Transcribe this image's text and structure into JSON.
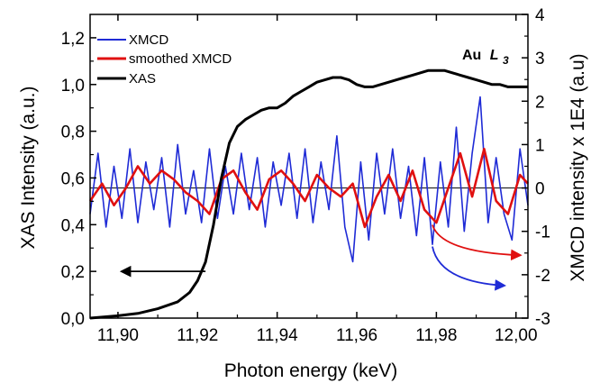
{
  "chart_data": {
    "type": "line",
    "title": "",
    "xlabel": "Photon energy (keV)",
    "ylabel": "XAS Intensity (a.u.)",
    "y2label": "XMCD intensity x 1E4 (a.u)",
    "xlim": [
      11.893,
      12.003
    ],
    "ylim": [
      0.0,
      1.3
    ],
    "y2lim": [
      -3,
      4
    ],
    "x_ticks": [
      11.9,
      11.92,
      11.94,
      11.96,
      11.98,
      12.0
    ],
    "x_tick_labels": [
      "11,90",
      "11,92",
      "11,94",
      "11,96",
      "11,98",
      "12,00"
    ],
    "y_ticks": [
      0.0,
      0.2,
      0.4,
      0.6,
      0.8,
      1.0,
      1.2
    ],
    "y_tick_labels": [
      "0,0",
      "0,2",
      "0,4",
      "0,6",
      "0,8",
      "1,0",
      "1,2"
    ],
    "y2_ticks": [
      -3,
      -2,
      -1,
      0,
      1,
      2,
      3,
      4
    ],
    "y2_tick_labels": [
      "-3",
      "-2",
      "-1",
      "0",
      "1",
      "2",
      "3",
      "4"
    ],
    "grid": false,
    "legend_position": "top-left",
    "zero_line_y2": 0,
    "annotation": {
      "text": "Au",
      "element_subscript_label": "L",
      "subscript": "3"
    },
    "colors": {
      "xmcd": "#1f2bd6",
      "smoothed": "#e01010",
      "xas": "#000000"
    },
    "series": [
      {
        "name": "XMCD",
        "axis": "right",
        "x": [
          11.893,
          11.895,
          11.897,
          11.899,
          11.901,
          11.903,
          11.905,
          11.907,
          11.909,
          11.911,
          11.913,
          11.915,
          11.917,
          11.919,
          11.921,
          11.923,
          11.925,
          11.927,
          11.929,
          11.931,
          11.933,
          11.935,
          11.937,
          11.939,
          11.941,
          11.943,
          11.945,
          11.947,
          11.949,
          11.951,
          11.953,
          11.955,
          11.957,
          11.959,
          11.961,
          11.963,
          11.965,
          11.967,
          11.969,
          11.971,
          11.973,
          11.975,
          11.977,
          11.979,
          11.981,
          11.983,
          11.985,
          11.987,
          11.989,
          11.991,
          11.993,
          11.995,
          11.997,
          11.999,
          12.001,
          12.003
        ],
        "values": [
          -0.6,
          0.8,
          -0.9,
          0.5,
          -0.7,
          0.9,
          -0.8,
          0.6,
          -0.5,
          0.7,
          -0.9,
          1.0,
          -0.6,
          0.4,
          -0.8,
          0.9,
          -0.7,
          0.5,
          -0.6,
          0.8,
          -0.5,
          0.7,
          -0.9,
          0.6,
          -0.4,
          0.8,
          -0.7,
          0.9,
          -0.8,
          0.6,
          -0.5,
          1.2,
          -0.9,
          -1.7,
          0.6,
          -1.2,
          0.8,
          -0.6,
          0.9,
          -0.7,
          0.5,
          -1.1,
          0.7,
          -1.3,
          0.6,
          -0.9,
          1.4,
          -1.0,
          0.8,
          2.1,
          -0.8,
          0.7,
          -0.6,
          -1.2,
          0.9,
          -0.4
        ]
      },
      {
        "name": "smoothed XMCD",
        "axis": "right",
        "x": [
          11.893,
          11.896,
          11.899,
          11.902,
          11.905,
          11.908,
          11.911,
          11.914,
          11.917,
          11.92,
          11.923,
          11.926,
          11.929,
          11.932,
          11.935,
          11.938,
          11.941,
          11.944,
          11.947,
          11.95,
          11.953,
          11.956,
          11.959,
          11.962,
          11.965,
          11.968,
          11.971,
          11.974,
          11.977,
          11.98,
          11.983,
          11.986,
          11.989,
          11.992,
          11.995,
          11.998,
          12.001,
          12.003
        ],
        "values": [
          -0.3,
          0.1,
          -0.4,
          0.0,
          0.5,
          0.1,
          0.4,
          0.2,
          -0.1,
          -0.3,
          -0.6,
          0.2,
          0.4,
          -0.1,
          -0.5,
          0.2,
          0.4,
          0.1,
          -0.3,
          0.3,
          0.0,
          -0.2,
          0.1,
          -0.9,
          -0.2,
          0.3,
          -0.3,
          0.4,
          -0.5,
          -0.8,
          0.0,
          0.8,
          -0.2,
          0.9,
          -0.3,
          -0.6,
          0.3,
          0.1
        ]
      },
      {
        "name": "XAS",
        "axis": "left",
        "x": [
          11.893,
          11.9,
          11.905,
          11.91,
          11.915,
          11.918,
          11.92,
          11.922,
          11.924,
          11.926,
          11.928,
          11.93,
          11.932,
          11.934,
          11.936,
          11.938,
          11.94,
          11.942,
          11.944,
          11.946,
          11.948,
          11.95,
          11.952,
          11.954,
          11.956,
          11.958,
          11.96,
          11.962,
          11.964,
          11.966,
          11.968,
          11.97,
          11.972,
          11.974,
          11.976,
          11.978,
          11.98,
          11.982,
          11.984,
          11.986,
          11.988,
          11.99,
          11.992,
          11.994,
          11.996,
          11.998,
          12.0,
          12.003
        ],
        "values": [
          0.0,
          0.01,
          0.02,
          0.04,
          0.07,
          0.11,
          0.16,
          0.24,
          0.4,
          0.6,
          0.75,
          0.82,
          0.85,
          0.87,
          0.89,
          0.9,
          0.9,
          0.92,
          0.95,
          0.97,
          0.99,
          1.01,
          1.02,
          1.03,
          1.03,
          1.02,
          1.0,
          0.99,
          0.99,
          1.0,
          1.01,
          1.02,
          1.03,
          1.04,
          1.05,
          1.06,
          1.06,
          1.06,
          1.05,
          1.04,
          1.03,
          1.02,
          1.01,
          1.0,
          1.0,
          0.99,
          0.99,
          0.99
        ]
      }
    ],
    "arrows": [
      {
        "color": "#000000",
        "from": [
          11.922,
          0.2
        ],
        "to": [
          11.901,
          0.2
        ],
        "axis": "left",
        "curved": false
      },
      {
        "color": "#e01010",
        "from": [
          11.979,
          -0.85
        ],
        "to": [
          12.001,
          -1.55
        ],
        "axis": "right",
        "curved": true
      },
      {
        "color": "#1f2bd6",
        "from": [
          11.979,
          -1.35
        ],
        "to": [
          11.997,
          -2.25
        ],
        "axis": "right",
        "curved": true
      }
    ]
  }
}
